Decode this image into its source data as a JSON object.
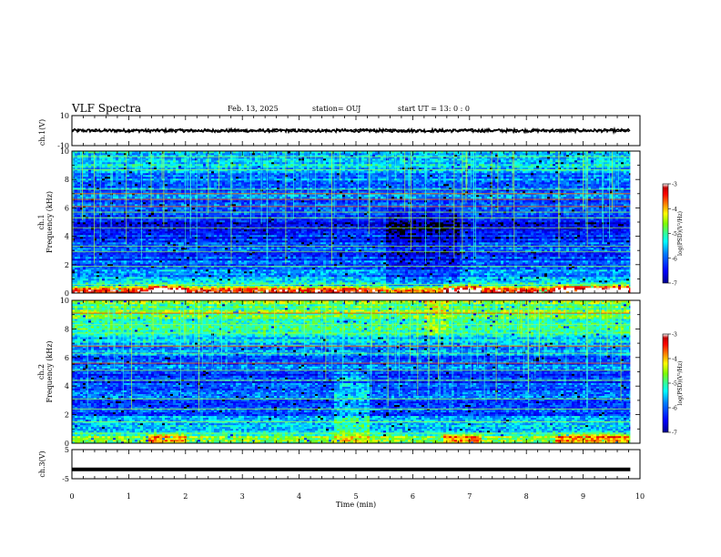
{
  "header": {
    "title": "VLF Spectra",
    "date": "Feb. 13, 2025",
    "station": "station= OUJ",
    "start": "start  UT =   13: 0  : 0"
  },
  "colorbar": {
    "label": "log(PSD)(V²/Hz)",
    "ticks": [
      "-3",
      "-4",
      "-5",
      "-6",
      "-7"
    ],
    "range": [
      -7,
      -3
    ],
    "colors": [
      "#00008f",
      "#0000ff",
      "#0080ff",
      "#00ffff",
      "#40ff80",
      "#80ff00",
      "#ffff00",
      "#ff8000",
      "#ff0000",
      "#c00000",
      "#ffffff"
    ]
  },
  "chart_data": [
    {
      "type": "line",
      "panel": "ch1-waveform",
      "ylabel": "ch.1(V)",
      "ylim": [
        -10,
        10
      ],
      "ytick_labels": [
        "10",
        "-10"
      ],
      "x_range": [
        0,
        9.83
      ],
      "mean_level": 0,
      "description_color": "#000000"
    },
    {
      "type": "heatmap",
      "panel": "ch1-spectrogram",
      "ylabel_top": "ch.1",
      "ylabel": "Frequency  (kHz)",
      "ylim": [
        0,
        10
      ],
      "ytick_labels": [
        "0",
        "2",
        "4",
        "6",
        "8",
        "10"
      ],
      "x_range": [
        0,
        9.83
      ],
      "band_levels": [
        {
          "f": 0.3,
          "level": -3.6
        },
        {
          "f": 0.5,
          "level": -5.2
        },
        {
          "f": 1.0,
          "level": -5.6
        },
        {
          "f": 1.5,
          "level": -5.8
        },
        {
          "f": 2.0,
          "level": -6.0
        },
        {
          "f": 3.0,
          "level": -6.1
        },
        {
          "f": 4.0,
          "level": -6.3
        },
        {
          "f": 5.0,
          "level": -6.4
        },
        {
          "f": 6.0,
          "level": -6.1
        },
        {
          "f": 7.0,
          "level": -6.0
        },
        {
          "f": 8.0,
          "level": -5.8
        },
        {
          "f": 9.0,
          "level": -5.5
        },
        {
          "f": 10.0,
          "level": -5.4
        }
      ],
      "tone_lines_khz": [
        0.6,
        1.9,
        2.9,
        3.3,
        4.6,
        5.3,
        5.7,
        6.1,
        6.6,
        7.0,
        7.3,
        8.7,
        9.6
      ],
      "strong_tones_khz": [
        6.1,
        6.6,
        7.0
      ]
    },
    {
      "type": "heatmap",
      "panel": "ch2-spectrogram",
      "ylabel_top": "ch.2",
      "ylabel": "Frequency  (kHz)",
      "ylim": [
        0,
        10
      ],
      "ytick_labels": [
        "0",
        "2",
        "4",
        "6",
        "8",
        "10"
      ],
      "x_range": [
        0,
        9.83
      ],
      "band_levels": [
        {
          "f": 0.3,
          "level": -4.6
        },
        {
          "f": 1.0,
          "level": -5.4
        },
        {
          "f": 2.0,
          "level": -5.9
        },
        {
          "f": 3.0,
          "level": -6.1
        },
        {
          "f": 4.0,
          "level": -6.2
        },
        {
          "f": 5.0,
          "level": -6.1
        },
        {
          "f": 6.0,
          "level": -5.9
        },
        {
          "f": 7.0,
          "level": -5.5
        },
        {
          "f": 8.0,
          "level": -5.0
        },
        {
          "f": 9.0,
          "level": -4.8
        },
        {
          "f": 10.0,
          "level": -4.8
        }
      ],
      "tone_lines_khz": [
        0.7,
        1.5,
        2.4,
        3.1,
        4.4,
        5.1,
        5.6,
        6.3,
        6.8,
        7.7,
        8.3,
        9.1
      ],
      "strong_tones_khz": [
        5.6,
        6.8,
        9.1
      ]
    },
    {
      "type": "line",
      "panel": "ch3-waveform",
      "ylabel": "ch.3(V)",
      "ylim": [
        -5,
        5
      ],
      "ytick_labels": [
        "5",
        "-5"
      ],
      "x_range": [
        0,
        9.83
      ],
      "mean_level": -1.8
    }
  ],
  "xaxis": {
    "label": "Time  (min)",
    "ticks": [
      "0",
      "1",
      "2",
      "3",
      "4",
      "5",
      "6",
      "7",
      "8",
      "9",
      "10"
    ],
    "range": [
      0,
      10
    ]
  }
}
